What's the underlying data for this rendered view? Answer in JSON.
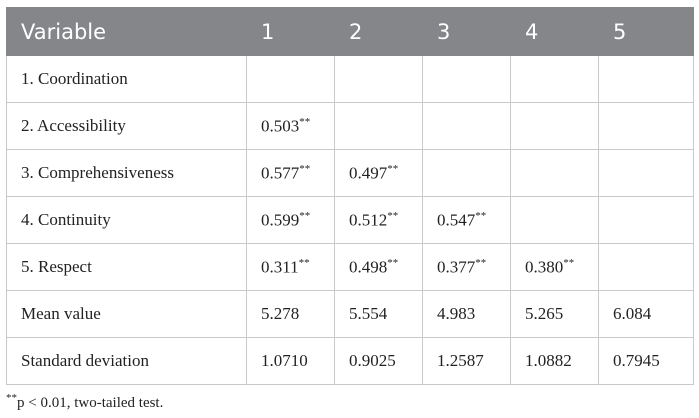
{
  "table": {
    "header": [
      "Variable",
      "1",
      "2",
      "3",
      "4",
      "5"
    ],
    "rows": [
      [
        "1. Coordination",
        null,
        null,
        null,
        null,
        null
      ],
      [
        "2. Accessibility",
        {
          "text": "0.503",
          "sup": "**"
        },
        null,
        null,
        null,
        null
      ],
      [
        "3. Comprehensiveness",
        {
          "text": "0.577",
          "sup": "**"
        },
        {
          "text": "0.497",
          "sup": "**"
        },
        null,
        null,
        null
      ],
      [
        "4. Continuity",
        {
          "text": "0.599",
          "sup": "**"
        },
        {
          "text": "0.512",
          "sup": "**"
        },
        {
          "text": "0.547",
          "sup": "**"
        },
        null,
        null
      ],
      [
        "5. Respect",
        {
          "text": "0.311",
          "sup": "**"
        },
        {
          "text": "0.498",
          "sup": "**"
        },
        {
          "text": "0.377",
          "sup": "**"
        },
        {
          "text": "0.380",
          "sup": "**"
        },
        null
      ],
      [
        "Mean value",
        "5.278",
        "5.554",
        "4.983",
        "5.265",
        "6.084"
      ],
      [
        "Standard deviation",
        "1.0710",
        "0.9025",
        "1.2587",
        "1.0882",
        "0.7945"
      ]
    ]
  },
  "footnote": {
    "sup": "**",
    "text": "p < 0.01, two-tailed test."
  }
}
